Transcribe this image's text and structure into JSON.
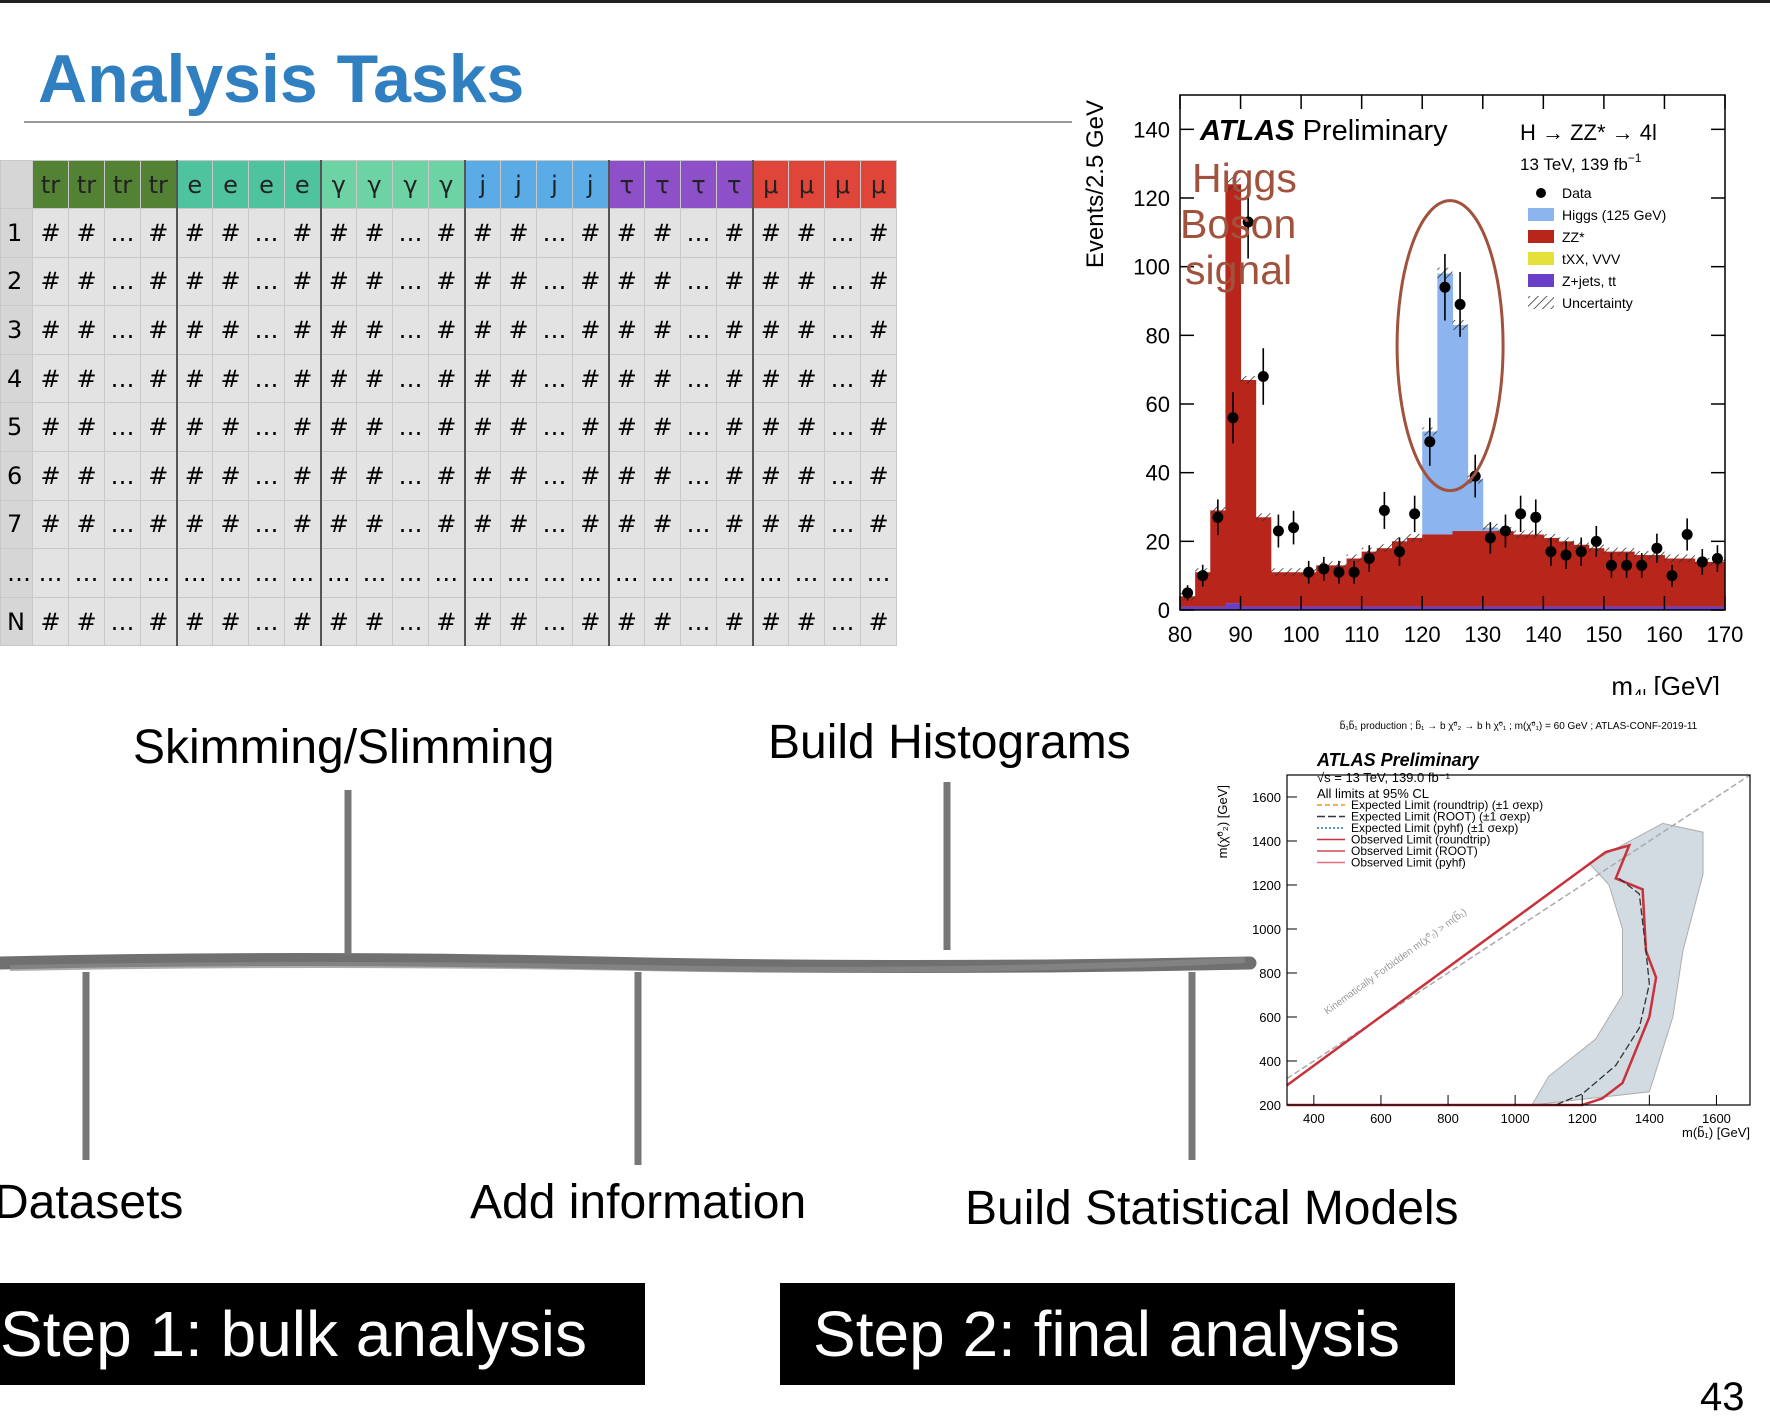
{
  "slide": {
    "title": "Analysis Tasks",
    "page_number": "43",
    "step1": "Step 1: bulk analysis",
    "step2": "Step 2: final analysis"
  },
  "timeline": {
    "labels": [
      "Skimming/Slimming",
      "Build Histograms",
      "Datasets",
      "Add information",
      "Build Statistical Models"
    ]
  },
  "table": {
    "groups": [
      {
        "symbol": "tr",
        "color": "#548235"
      },
      {
        "symbol": "e",
        "color": "#4fc39d"
      },
      {
        "symbol": "γ",
        "color": "#6dd3a4"
      },
      {
        "symbol": "j",
        "color": "#5aabe6"
      },
      {
        "symbol": "τ",
        "color": "#8e50c8"
      },
      {
        "symbol": "μ",
        "color": "#e0453a"
      }
    ],
    "row_labels": [
      "1",
      "2",
      "3",
      "4",
      "5",
      "6",
      "7",
      "…",
      "N"
    ],
    "cell_pattern": [
      "#",
      "#",
      "…",
      "#"
    ],
    "ellipsis": "…"
  },
  "histogram": {
    "experiment": "ATLAS",
    "status": "Preliminary",
    "process": "H → ZZ* → 4l",
    "energy_lumi": "13 TeV, 139 fb",
    "lumi_exp": "−1",
    "annotation": [
      "Higgs",
      "Boson",
      "signal"
    ],
    "annotation_color": "#a0523d",
    "colors": {
      "higgs": "#8cb4ef",
      "zz": "#b8251a",
      "txx": "#e6e03a",
      "zjets": "#6a3fc8"
    }
  },
  "chart_data": [
    {
      "type": "bar",
      "stacked": true,
      "x": [
        81.25,
        83.75,
        86.25,
        88.75,
        91.25,
        93.75,
        96.25,
        98.75,
        101.25,
        103.75,
        106.25,
        108.75,
        111.25,
        113.75,
        116.25,
        118.75,
        121.25,
        123.75,
        126.25,
        128.75,
        131.25,
        133.75,
        136.25,
        138.75,
        141.25,
        143.75,
        146.25,
        148.75,
        151.25,
        153.75,
        156.25,
        158.75,
        161.25,
        163.75,
        166.25,
        168.75
      ],
      "series": [
        {
          "name": "ZZ*",
          "values": [
            3,
            10,
            28,
            122,
            66,
            26,
            10,
            10,
            10,
            12,
            12,
            14,
            16,
            17,
            19,
            20,
            21,
            21,
            22,
            22,
            22,
            22,
            21,
            21,
            20,
            19,
            18,
            17,
            16,
            16,
            15,
            15,
            14,
            14,
            13,
            13
          ]
        },
        {
          "name": "tXX, VVV",
          "values": [
            0,
            0,
            0,
            0,
            0,
            0,
            0,
            0,
            0,
            0,
            0,
            0,
            0,
            0,
            0,
            0,
            0,
            0,
            0,
            0,
            0,
            0,
            0,
            0,
            0,
            0,
            0,
            0,
            0,
            0,
            0,
            0,
            0,
            0,
            0,
            0
          ]
        },
        {
          "name": "Z+jets, tt",
          "values": [
            1,
            1,
            1,
            2,
            1,
            1,
            1,
            1,
            1,
            1,
            1,
            1,
            1,
            1,
            1,
            1,
            1,
            1,
            1,
            1,
            1,
            1,
            1,
            1,
            1,
            1,
            1,
            1,
            1,
            1,
            1,
            1,
            1,
            1,
            1,
            1
          ]
        },
        {
          "name": "Higgs (125 GeV)",
          "values": [
            0,
            0,
            0,
            0,
            0,
            0,
            0,
            0,
            0,
            0,
            0,
            0,
            0,
            0,
            0,
            0,
            30,
            76,
            60,
            15,
            1,
            0,
            0,
            0,
            0,
            0,
            0,
            0,
            0,
            0,
            0,
            0,
            0,
            0,
            0,
            0
          ]
        }
      ],
      "data": {
        "name": "Data",
        "points": [
          [
            81.25,
            5
          ],
          [
            83.75,
            10
          ],
          [
            86.25,
            27
          ],
          [
            88.75,
            56
          ],
          [
            91.25,
            113
          ],
          [
            93.75,
            68
          ],
          [
            96.25,
            23
          ],
          [
            98.75,
            24
          ],
          [
            101.25,
            11
          ],
          [
            103.75,
            12
          ],
          [
            106.25,
            11
          ],
          [
            108.75,
            11
          ],
          [
            111.25,
            15
          ],
          [
            113.75,
            29
          ],
          [
            116.25,
            17
          ],
          [
            118.75,
            28
          ],
          [
            121.25,
            49
          ],
          [
            123.75,
            94
          ],
          [
            126.25,
            89
          ],
          [
            128.75,
            39
          ],
          [
            131.25,
            21
          ],
          [
            133.75,
            23
          ],
          [
            136.25,
            28
          ],
          [
            138.75,
            27
          ],
          [
            141.25,
            17
          ],
          [
            143.75,
            16
          ],
          [
            146.25,
            17
          ],
          [
            148.75,
            20
          ],
          [
            151.25,
            13
          ],
          [
            153.75,
            13
          ],
          [
            156.25,
            13
          ],
          [
            158.75,
            18
          ],
          [
            161.25,
            10
          ],
          [
            163.75,
            22
          ],
          [
            166.25,
            14
          ],
          [
            168.75,
            15
          ]
        ]
      },
      "legend": [
        "Data",
        "Higgs (125 GeV)",
        "ZZ*",
        "tXX, VVV",
        "Z+jets, tt",
        "Uncertainty"
      ],
      "xlim": [
        80,
        170
      ],
      "ylim": [
        0,
        150
      ],
      "xticks": [
        80,
        90,
        100,
        110,
        120,
        130,
        140,
        150,
        160,
        170
      ],
      "yticks": [
        0,
        20,
        40,
        60,
        80,
        100,
        120,
        140
      ],
      "xlabel": "m",
      "xlabel_sub": "4l",
      "xlabel_unit": "[GeV]",
      "ylabel": "Events/2.5 GeV",
      "legend_position": "top-right"
    },
    {
      "type": "line",
      "title": "b̃₁b̃₁ production ; b̃₁ → b χ̃⁰₂ → b h χ̃⁰₁ ; m(χ̃⁰₁) = 60 GeV ; ATLAS-CONF-2019-11",
      "header": [
        "ATLAS Preliminary",
        "√s = 13 TeV, 139.0 fb⁻¹",
        "All limits at 95% CL"
      ],
      "legend": [
        "Expected Limit (roundtrip) (±1 σexp)",
        "Expected Limit (ROOT) (±1 σexp)",
        "Expected Limit (pyhf) (±1 σexp)",
        "Observed Limit (roundtrip)",
        "Observed Limit (ROOT)",
        "Observed Limit (pyhf)"
      ],
      "diagonal_label": "Kinematically Forbidden m(χ̃⁰₂) > m(b̃₁)",
      "xlabel": "m(b̃₁) [GeV]",
      "ylabel": "m(χ̃⁰₂) [GeV]",
      "xlim": [
        320,
        1700
      ],
      "ylim": [
        200,
        1700
      ],
      "xticks": [
        400,
        600,
        800,
        1000,
        1200,
        1400,
        1600
      ],
      "yticks": [
        200,
        400,
        600,
        800,
        1000,
        1200,
        1400,
        1600
      ],
      "observed": [
        [
          320,
          290
        ],
        [
          1270,
          1350
        ],
        [
          1340,
          1380
        ],
        [
          1300,
          1230
        ],
        [
          1380,
          1180
        ],
        [
          1390,
          900
        ],
        [
          1420,
          780
        ],
        [
          1400,
          600
        ],
        [
          1360,
          450
        ],
        [
          1320,
          300
        ],
        [
          1260,
          230
        ],
        [
          1200,
          200
        ],
        [
          320,
          200
        ]
      ],
      "expected": [
        [
          1310,
          1230
        ],
        [
          1370,
          1160
        ],
        [
          1390,
          900
        ],
        [
          1400,
          750
        ],
        [
          1370,
          550
        ],
        [
          1300,
          380
        ],
        [
          1200,
          250
        ],
        [
          1120,
          200
        ]
      ],
      "band": [
        [
          1220,
          1300
        ],
        [
          1440,
          1480
        ],
        [
          1560,
          1440
        ],
        [
          1560,
          1250
        ],
        [
          1500,
          900
        ],
        [
          1470,
          600
        ],
        [
          1400,
          260
        ],
        [
          1050,
          200
        ],
        [
          1100,
          330
        ],
        [
          1240,
          500
        ],
        [
          1320,
          700
        ],
        [
          1320,
          1000
        ],
        [
          1280,
          1200
        ]
      ],
      "forbidden_line": [
        [
          320,
          320
        ],
        [
          1700,
          1700
        ]
      ]
    }
  ]
}
